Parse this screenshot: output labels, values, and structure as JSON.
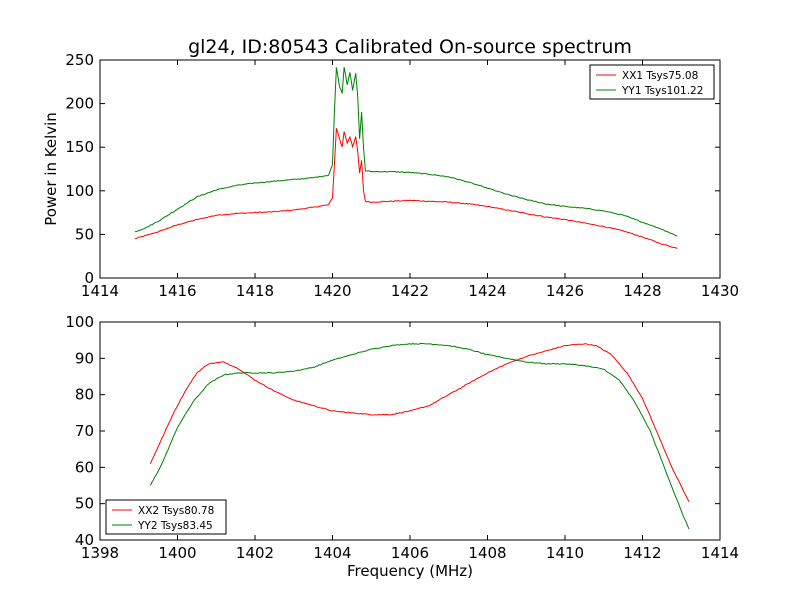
{
  "title": "gl24, ID:80543 Calibrated On-source spectrum",
  "chart_data": [
    {
      "type": "line",
      "xlim": [
        1414,
        1430
      ],
      "ylim": [
        0,
        250
      ],
      "xticks": [
        1414,
        1416,
        1418,
        1420,
        1422,
        1424,
        1426,
        1428,
        1430
      ],
      "yticks": [
        0,
        50,
        100,
        150,
        200,
        250
      ],
      "xlabel": "",
      "ylabel": "Power in Kelvin",
      "legend": "top-right",
      "series": [
        {
          "name": "XX1 Tsys75.08",
          "color": "#ff0000",
          "points": [
            [
              1414.9,
              45
            ],
            [
              1415.2,
              49
            ],
            [
              1415.5,
              53
            ],
            [
              1416.0,
              61
            ],
            [
              1416.5,
              67
            ],
            [
              1417.0,
              72
            ],
            [
              1417.5,
              74
            ],
            [
              1418.0,
              75
            ],
            [
              1418.5,
              76
            ],
            [
              1419.0,
              78
            ],
            [
              1419.5,
              81
            ],
            [
              1419.9,
              84
            ],
            [
              1420.0,
              92
            ],
            [
              1420.05,
              130
            ],
            [
              1420.1,
              172
            ],
            [
              1420.18,
              160
            ],
            [
              1420.25,
              150
            ],
            [
              1420.3,
              168
            ],
            [
              1420.38,
              155
            ],
            [
              1420.45,
              162
            ],
            [
              1420.52,
              150
            ],
            [
              1420.6,
              162
            ],
            [
              1420.65,
              145
            ],
            [
              1420.7,
              120
            ],
            [
              1420.75,
              135
            ],
            [
              1420.8,
              100
            ],
            [
              1420.85,
              88
            ],
            [
              1421.0,
              87
            ],
            [
              1421.5,
              88
            ],
            [
              1422.0,
              89
            ],
            [
              1422.5,
              88
            ],
            [
              1423.0,
              87
            ],
            [
              1423.5,
              85
            ],
            [
              1424.0,
              82
            ],
            [
              1424.5,
              78
            ],
            [
              1425.0,
              74
            ],
            [
              1425.5,
              70
            ],
            [
              1426.0,
              67
            ],
            [
              1426.5,
              63
            ],
            [
              1427.0,
              59
            ],
            [
              1427.5,
              54
            ],
            [
              1428.0,
              47
            ],
            [
              1428.5,
              39
            ],
            [
              1428.9,
              34
            ]
          ]
        },
        {
          "name": "YY1 Tsys101.22",
          "color": "#008000",
          "points": [
            [
              1414.9,
              53
            ],
            [
              1415.2,
              58
            ],
            [
              1415.5,
              65
            ],
            [
              1416.0,
              79
            ],
            [
              1416.5,
              93
            ],
            [
              1417.0,
              101
            ],
            [
              1417.5,
              106
            ],
            [
              1418.0,
              109
            ],
            [
              1418.5,
              111
            ],
            [
              1419.0,
              113
            ],
            [
              1419.5,
              115
            ],
            [
              1419.9,
              118
            ],
            [
              1420.0,
              130
            ],
            [
              1420.05,
              190
            ],
            [
              1420.1,
              242
            ],
            [
              1420.18,
              220
            ],
            [
              1420.25,
              212
            ],
            [
              1420.3,
              242
            ],
            [
              1420.38,
              222
            ],
            [
              1420.45,
              236
            ],
            [
              1420.52,
              215
            ],
            [
              1420.6,
              235
            ],
            [
              1420.65,
              208
            ],
            [
              1420.7,
              160
            ],
            [
              1420.75,
              190
            ],
            [
              1420.8,
              150
            ],
            [
              1420.85,
              123
            ],
            [
              1421.0,
              122
            ],
            [
              1421.5,
              122
            ],
            [
              1422.0,
              121
            ],
            [
              1422.5,
              119
            ],
            [
              1423.0,
              116
            ],
            [
              1423.5,
              110
            ],
            [
              1424.0,
              103
            ],
            [
              1424.5,
              96
            ],
            [
              1425.0,
              90
            ],
            [
              1425.5,
              85
            ],
            [
              1426.0,
              82
            ],
            [
              1426.5,
              80
            ],
            [
              1427.0,
              77
            ],
            [
              1427.5,
              72
            ],
            [
              1428.0,
              64
            ],
            [
              1428.5,
              56
            ],
            [
              1428.9,
              48
            ]
          ]
        }
      ]
    },
    {
      "type": "line",
      "xlim": [
        1398,
        1414
      ],
      "ylim": [
        40,
        100
      ],
      "xticks": [
        1398,
        1400,
        1402,
        1404,
        1406,
        1408,
        1410,
        1412,
        1414
      ],
      "yticks": [
        40,
        50,
        60,
        70,
        80,
        90,
        100
      ],
      "xlabel": "Frequency (MHz)",
      "ylabel": "",
      "legend": "bottom-left",
      "series": [
        {
          "name": "XX2 Tsys80.78",
          "color": "#ff0000",
          "points": [
            [
              1399.3,
              61
            ],
            [
              1399.6,
              68
            ],
            [
              1399.9,
              75
            ],
            [
              1400.2,
              81
            ],
            [
              1400.5,
              86
            ],
            [
              1400.8,
              88.5
            ],
            [
              1401.2,
              89
            ],
            [
              1401.6,
              87
            ],
            [
              1402.0,
              84
            ],
            [
              1402.5,
              81
            ],
            [
              1403.0,
              78.5
            ],
            [
              1403.5,
              77
            ],
            [
              1404.0,
              75.5
            ],
            [
              1404.5,
              75
            ],
            [
              1405.0,
              74.5
            ],
            [
              1405.5,
              74.5
            ],
            [
              1406.0,
              75.5
            ],
            [
              1406.5,
              77
            ],
            [
              1407.0,
              80
            ],
            [
              1407.5,
              83
            ],
            [
              1408.0,
              86
            ],
            [
              1408.5,
              88.5
            ],
            [
              1409.0,
              90.5
            ],
            [
              1409.5,
              92
            ],
            [
              1410.0,
              93.5
            ],
            [
              1410.5,
              94
            ],
            [
              1410.8,
              93.5
            ],
            [
              1411.2,
              91
            ],
            [
              1411.6,
              86
            ],
            [
              1412.0,
              79
            ],
            [
              1412.4,
              69
            ],
            [
              1412.8,
              59
            ],
            [
              1413.2,
              50.5
            ]
          ]
        },
        {
          "name": "YY2 Tsys83.45",
          "color": "#008000",
          "points": [
            [
              1399.3,
              55
            ],
            [
              1399.6,
              61
            ],
            [
              1400.0,
              71
            ],
            [
              1400.4,
              78
            ],
            [
              1400.8,
              83
            ],
            [
              1401.2,
              85.5
            ],
            [
              1401.6,
              86
            ],
            [
              1402.0,
              86
            ],
            [
              1402.5,
              86
            ],
            [
              1403.0,
              86.5
            ],
            [
              1403.5,
              87.5
            ],
            [
              1404.0,
              89.5
            ],
            [
              1404.5,
              91
            ],
            [
              1405.0,
              92.5
            ],
            [
              1405.5,
              93.5
            ],
            [
              1406.0,
              94
            ],
            [
              1406.5,
              94
            ],
            [
              1407.0,
              93.5
            ],
            [
              1407.5,
              92.5
            ],
            [
              1408.0,
              91
            ],
            [
              1408.5,
              90
            ],
            [
              1409.0,
              89
            ],
            [
              1409.5,
              88.5
            ],
            [
              1410.0,
              88.5
            ],
            [
              1410.5,
              88
            ],
            [
              1411.0,
              87
            ],
            [
              1411.4,
              84
            ],
            [
              1411.8,
              78
            ],
            [
              1412.2,
              70
            ],
            [
              1412.6,
              59
            ],
            [
              1413.0,
              48
            ],
            [
              1413.2,
              43
            ]
          ]
        }
      ]
    }
  ]
}
